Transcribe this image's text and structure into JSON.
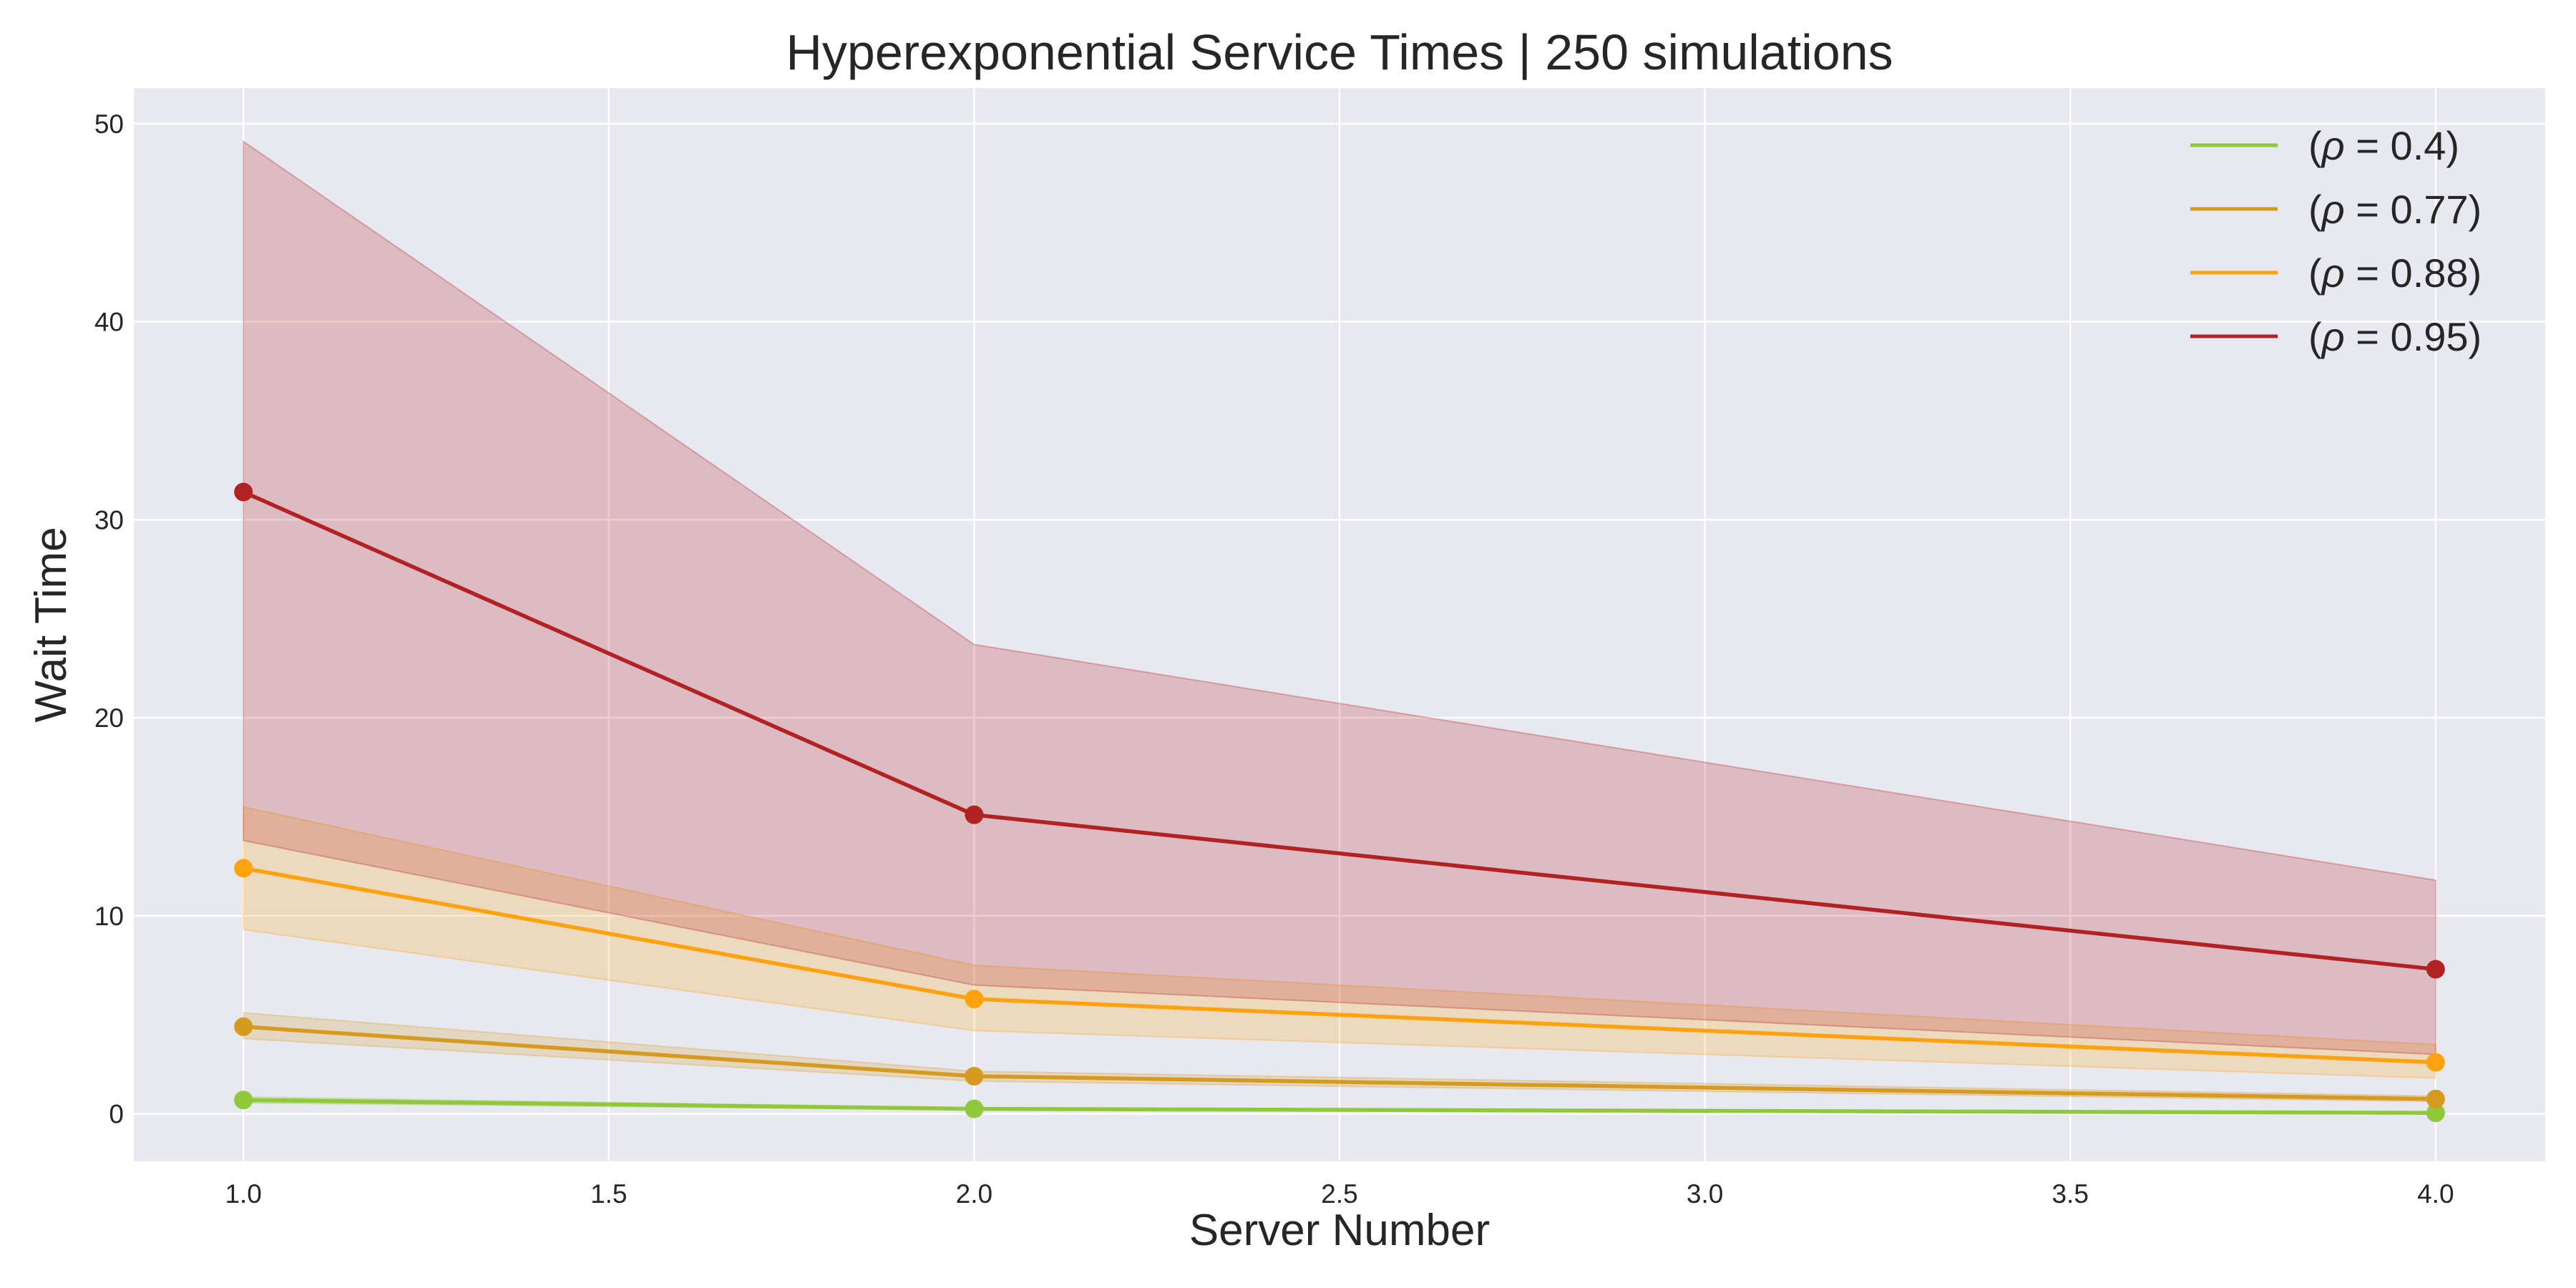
{
  "chart_data": {
    "type": "line",
    "title": "Hyperexponential Service Times | 250 simulations",
    "xlabel": "Server Number",
    "ylabel": "Wait Time",
    "xlim": [
      0.85,
      4.15
    ],
    "ylim": [
      -2.4,
      51.8
    ],
    "xticks": [
      1.0,
      1.5,
      2.0,
      2.5,
      3.0,
      3.5,
      4.0
    ],
    "xtick_labels": [
      "1.0",
      "1.5",
      "2.0",
      "2.5",
      "3.0",
      "3.5",
      "4.0"
    ],
    "yticks": [
      0,
      10,
      20,
      30,
      40,
      50
    ],
    "ytick_labels": [
      "0",
      "10",
      "20",
      "30",
      "40",
      "50"
    ],
    "grid": true,
    "legend_position": "top-right",
    "plot_background": "#e8e8f0",
    "x": [
      1,
      2,
      4
    ],
    "series": [
      {
        "name": "ρ = 0.4",
        "legend_prefix": "(",
        "legend_rho": "ρ",
        "legend_rest": " = 0.4)",
        "color": "#8fc93a",
        "values": [
          0.7,
          0.25,
          0.05
        ],
        "lower": [
          0.55,
          0.2,
          0.03
        ],
        "upper": [
          0.85,
          0.3,
          0.08
        ]
      },
      {
        "name": "ρ = 0.77",
        "legend_prefix": "(",
        "legend_rho": "ρ",
        "legend_rest": " = 0.77)",
        "color": "#d69a20",
        "values": [
          4.4,
          1.9,
          0.75
        ],
        "lower": [
          3.8,
          1.65,
          0.62
        ],
        "upper": [
          5.1,
          2.15,
          0.9
        ]
      },
      {
        "name": "ρ = 0.88",
        "legend_prefix": "(",
        "legend_rho": "ρ",
        "legend_rest": " = 0.88)",
        "color": "#ffa20e",
        "values": [
          12.4,
          5.8,
          2.6
        ],
        "lower": [
          9.3,
          4.2,
          1.8
        ],
        "upper": [
          15.5,
          7.5,
          3.5
        ]
      },
      {
        "name": "ρ = 0.95",
        "legend_prefix": "(",
        "legend_rho": "ρ",
        "legend_rest": " = 0.95)",
        "color": "#b22222",
        "values": [
          31.4,
          15.1,
          7.3
        ],
        "lower": [
          13.8,
          6.5,
          3.0
        ],
        "upper": [
          49.1,
          23.7,
          11.8
        ]
      }
    ]
  }
}
